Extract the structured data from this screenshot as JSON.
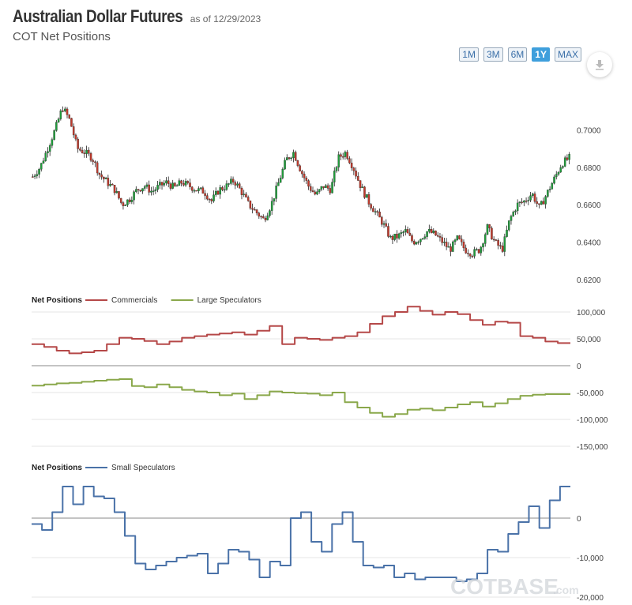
{
  "header": {
    "title": "Australian Dollar Futures",
    "as_of": "as of 12/29/2023",
    "subtitle": "COT Net Positions"
  },
  "range_buttons": [
    {
      "label": "1M",
      "active": false
    },
    {
      "label": "3M",
      "active": false
    },
    {
      "label": "6M",
      "active": false
    },
    {
      "label": "1Y",
      "active": true
    },
    {
      "label": "MAX",
      "active": false
    }
  ],
  "watermark": {
    "main": "COTBASE",
    "suffix": ".com"
  },
  "colors": {
    "up_candle": "#1e9e3a",
    "down_candle": "#c0392b",
    "commercials": "#b54848",
    "large_speculators": "#8aa84b",
    "small_speculators": "#4a72a8",
    "accent": "#3f9fdc"
  },
  "chart_data": [
    {
      "type": "candlestick",
      "title": "Australian Dollar Futures price",
      "ylim": [
        0.62,
        0.72
      ],
      "yticks": [
        "0.7000",
        "0.6800",
        "0.6600",
        "0.6400",
        "0.6200"
      ],
      "ytick_values": [
        0.7,
        0.68,
        0.66,
        0.64,
        0.62
      ],
      "close_path": [
        0.675,
        0.68,
        0.69,
        0.7,
        0.712,
        0.705,
        0.69,
        0.688,
        0.685,
        0.676,
        0.672,
        0.668,
        0.66,
        0.663,
        0.668,
        0.67,
        0.667,
        0.67,
        0.672,
        0.669,
        0.672,
        0.67,
        0.668,
        0.667,
        0.662,
        0.668,
        0.67,
        0.673,
        0.667,
        0.66,
        0.656,
        0.652,
        0.66,
        0.672,
        0.684,
        0.688,
        0.678,
        0.67,
        0.665,
        0.67,
        0.668,
        0.685,
        0.688,
        0.68,
        0.67,
        0.662,
        0.656,
        0.65,
        0.642,
        0.643,
        0.646,
        0.64,
        0.642,
        0.646,
        0.644,
        0.64,
        0.636,
        0.642,
        0.636,
        0.634,
        0.636,
        0.648,
        0.64,
        0.636,
        0.652,
        0.66,
        0.662,
        0.666,
        0.658,
        0.666,
        0.674,
        0.682,
        0.685
      ]
    },
    {
      "type": "line",
      "title": "Net Positions",
      "ylim": [
        -150000,
        100000
      ],
      "yticks": [
        "100,000",
        "50,000",
        "0",
        "-50,000",
        "-100,000",
        "-150,000"
      ],
      "ytick_values": [
        100000,
        50000,
        0,
        -50000,
        -100000,
        -150000
      ],
      "series": [
        {
          "name": "Commercials",
          "values": [
            40000,
            35000,
            28000,
            23000,
            25000,
            28000,
            40000,
            52000,
            50000,
            46000,
            40000,
            45000,
            52000,
            55000,
            58000,
            60000,
            62000,
            58000,
            65000,
            74000,
            40000,
            52000,
            50000,
            48000,
            52000,
            55000,
            62000,
            78000,
            92000,
            100000,
            110000,
            102000,
            95000,
            100000,
            96000,
            85000,
            76000,
            82000,
            80000,
            55000,
            52000,
            45000,
            42000
          ]
        },
        {
          "name": "Large Speculators",
          "values": [
            -37000,
            -35000,
            -33000,
            -32000,
            -30000,
            -28000,
            -26000,
            -25000,
            -38000,
            -40000,
            -35000,
            -40000,
            -45000,
            -48000,
            -50000,
            -55000,
            -52000,
            -62000,
            -55000,
            -48000,
            -50000,
            -51000,
            -52000,
            -55000,
            -50000,
            -68000,
            -78000,
            -88000,
            -95000,
            -90000,
            -82000,
            -80000,
            -83000,
            -78000,
            -72000,
            -68000,
            -76000,
            -70000,
            -62000,
            -56000,
            -54000,
            -53000,
            -53000
          ]
        }
      ]
    },
    {
      "type": "line",
      "title": "Net Positions",
      "ylim": [
        -20000,
        10000
      ],
      "yticks": [
        "0",
        "-10,000",
        "-20,000"
      ],
      "ytick_values": [
        0,
        -10000,
        -20000
      ],
      "series": [
        {
          "name": "Small Speculators",
          "values": [
            -1500,
            -3000,
            1500,
            8000,
            3500,
            8000,
            5500,
            5000,
            1500,
            -4500,
            -11500,
            -13000,
            -12000,
            -11000,
            -10000,
            -9500,
            -9000,
            -14000,
            -11500,
            -8000,
            -8500,
            -10500,
            -15000,
            -11000,
            -12000,
            0,
            1500,
            -6000,
            -8500,
            -1500,
            1500,
            -6000,
            -12000,
            -12500,
            -12000,
            -15000,
            -14000,
            -15500,
            -15000,
            -15000,
            -15000,
            -16000,
            -15500,
            -14000,
            -8000,
            -8500,
            -4000,
            -1000,
            3000,
            -2500,
            4500,
            8000
          ]
        }
      ]
    }
  ]
}
